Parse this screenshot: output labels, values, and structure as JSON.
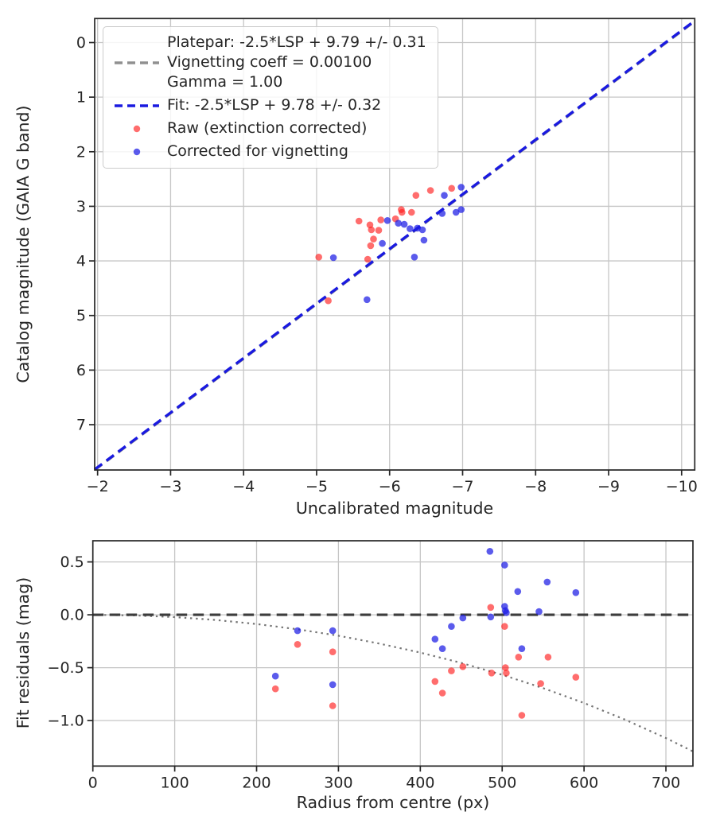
{
  "figure": {
    "background": "#ffffff"
  },
  "colors": {
    "raw": "rgba(255,30,30,0.65)",
    "corrected": "rgba(28,28,228,0.72)",
    "fit_line": "#1a1ae0",
    "platepar_line": "#909090",
    "zero_line": "#3d3d3d",
    "model_curve": "#757575",
    "grid": "#c6c6c6",
    "spine": "#262626",
    "text": "#262626"
  },
  "legend": {
    "platepar_line1": "Platepar: -2.5*LSP + 9.79 +/- 0.31",
    "platepar_line2": "Vignetting coeff = 0.00100",
    "platepar_line3": "Gamma = 1.00",
    "fit_label": "Fit: -2.5*LSP + 9.78 +/- 0.32",
    "raw_label": "Raw (extinction corrected)",
    "corrected_label": "Corrected for vignetting"
  },
  "chart_data": [
    {
      "type": "scatter",
      "title": "",
      "xlabel": "Uncalibrated magnitude",
      "ylabel": "Catalog magnitude (GAIA G band)",
      "xlim": [
        -1.96,
        -10.18
      ],
      "ylim": [
        -0.44,
        7.83
      ],
      "x_inverted": true,
      "y_inverted": true,
      "grid": true,
      "x_ticks": {
        "values": [
          -2,
          -3,
          -4,
          -5,
          -6,
          -7,
          -8,
          -9,
          -10
        ],
        "labels": [
          "−2",
          "−3",
          "−4",
          "−5",
          "−6",
          "−7",
          "−8",
          "−9",
          "−10"
        ]
      },
      "y_ticks": {
        "values": [
          0,
          1,
          2,
          3,
          4,
          5,
          6,
          7
        ],
        "labels": [
          "0",
          "1",
          "2",
          "3",
          "4",
          "5",
          "6",
          "7"
        ]
      },
      "fit_lines": [
        {
          "name": "Platepar: -2.5*LSP + 9.79 +/- 0.31",
          "slope": 1,
          "intercept": 9.79,
          "color_key": "platepar_line",
          "style": "dashed"
        },
        {
          "name": "Fit: -2.5*LSP + 9.78 +/- 0.32",
          "slope": 1,
          "intercept": 9.78,
          "color_key": "fit_line",
          "style": "dashed"
        }
      ],
      "series": [
        {
          "name": "Raw (extinction corrected)",
          "color_key": "raw",
          "points": [
            [
              -5.03,
              3.93
            ],
            [
              -5.16,
              4.73
            ],
            [
              -5.58,
              3.27
            ],
            [
              -5.7,
              3.97
            ],
            [
              -5.73,
              3.34
            ],
            [
              -5.75,
              3.43
            ],
            [
              -5.74,
              3.72
            ],
            [
              -5.78,
              3.6
            ],
            [
              -5.85,
              3.44
            ],
            [
              -5.88,
              3.25
            ],
            [
              -6.08,
              3.23
            ],
            [
              -6.16,
              3.06
            ],
            [
              -6.17,
              3.11
            ],
            [
              -6.3,
              3.11
            ],
            [
              -6.36,
              2.8
            ],
            [
              -6.56,
              2.71
            ],
            [
              -6.85,
              2.67
            ]
          ]
        },
        {
          "name": "Corrected for vignetting",
          "color_key": "corrected",
          "points": [
            [
              -5.23,
              3.94
            ],
            [
              -5.69,
              4.71
            ],
            [
              -5.9,
              3.68
            ],
            [
              -5.97,
              3.26
            ],
            [
              -6.12,
              3.31
            ],
            [
              -6.2,
              3.33
            ],
            [
              -6.28,
              3.41
            ],
            [
              -6.38,
              3.4
            ],
            [
              -6.45,
              3.43
            ],
            [
              -6.47,
              3.62
            ],
            [
              -6.34,
              3.93
            ],
            [
              -6.72,
              3.13
            ],
            [
              -6.75,
              2.8
            ],
            [
              -6.91,
              3.11
            ],
            [
              -6.98,
              2.65
            ],
            [
              -6.98,
              3.06
            ]
          ]
        }
      ]
    },
    {
      "type": "scatter",
      "title": "",
      "xlabel": "Radius from centre (px)",
      "ylabel": "Fit residuals (mag)",
      "xlim": [
        0,
        733
      ],
      "ylim": [
        0.7,
        -1.43
      ],
      "grid": true,
      "x_ticks": {
        "values": [
          0,
          100,
          200,
          300,
          400,
          500,
          600,
          700
        ],
        "labels": [
          "0",
          "100",
          "200",
          "300",
          "400",
          "500",
          "600",
          "700"
        ]
      },
      "y_ticks": {
        "values": [
          0.5,
          0.0,
          -0.5,
          -1.0
        ],
        "labels": [
          "0.5",
          "0.0",
          "−0.5",
          "−1.0"
        ]
      },
      "zero_line_y": 0.0,
      "model_curve": {
        "name": "vignetting model residual",
        "points": [
          [
            0,
            0
          ],
          [
            50,
            -0.005
          ],
          [
            100,
            -0.022
          ],
          [
            150,
            -0.049
          ],
          [
            200,
            -0.087
          ],
          [
            250,
            -0.137
          ],
          [
            300,
            -0.198
          ],
          [
            350,
            -0.272
          ],
          [
            400,
            -0.357
          ],
          [
            450,
            -0.455
          ],
          [
            500,
            -0.567
          ],
          [
            550,
            -0.693
          ],
          [
            600,
            -0.834
          ],
          [
            650,
            -0.991
          ],
          [
            700,
            -1.165
          ],
          [
            733,
            -1.292
          ]
        ]
      },
      "series": [
        {
          "name": "Raw (extinction corrected)",
          "color_key": "raw",
          "points": [
            [
              223,
              -0.7
            ],
            [
              250,
              -0.28
            ],
            [
              293,
              -0.35
            ],
            [
              293,
              -0.86
            ],
            [
              418,
              -0.63
            ],
            [
              427,
              -0.74
            ],
            [
              438,
              -0.53
            ],
            [
              452,
              -0.49
            ],
            [
              486,
              0.07
            ],
            [
              487,
              -0.55
            ],
            [
              503,
              -0.11
            ],
            [
              504,
              -0.5
            ],
            [
              505,
              -0.55
            ],
            [
              520,
              -0.4
            ],
            [
              524,
              -0.95
            ],
            [
              547,
              -0.65
            ],
            [
              556,
              -0.4
            ],
            [
              590,
              -0.59
            ]
          ]
        },
        {
          "name": "Corrected for vignetting",
          "color_key": "corrected",
          "points": [
            [
              223,
              -0.58
            ],
            [
              250,
              -0.15
            ],
            [
              293,
              -0.15
            ],
            [
              293,
              -0.66
            ],
            [
              418,
              -0.23
            ],
            [
              427,
              -0.32
            ],
            [
              438,
              -0.11
            ],
            [
              452,
              -0.03
            ],
            [
              485,
              0.6
            ],
            [
              486,
              -0.02
            ],
            [
              503,
              0.47
            ],
            [
              503,
              0.08
            ],
            [
              504,
              0.04
            ],
            [
              505,
              0.02
            ],
            [
              519,
              0.22
            ],
            [
              524,
              -0.32
            ],
            [
              545,
              0.03
            ],
            [
              555,
              0.31
            ],
            [
              590,
              0.21
            ]
          ]
        }
      ]
    }
  ]
}
